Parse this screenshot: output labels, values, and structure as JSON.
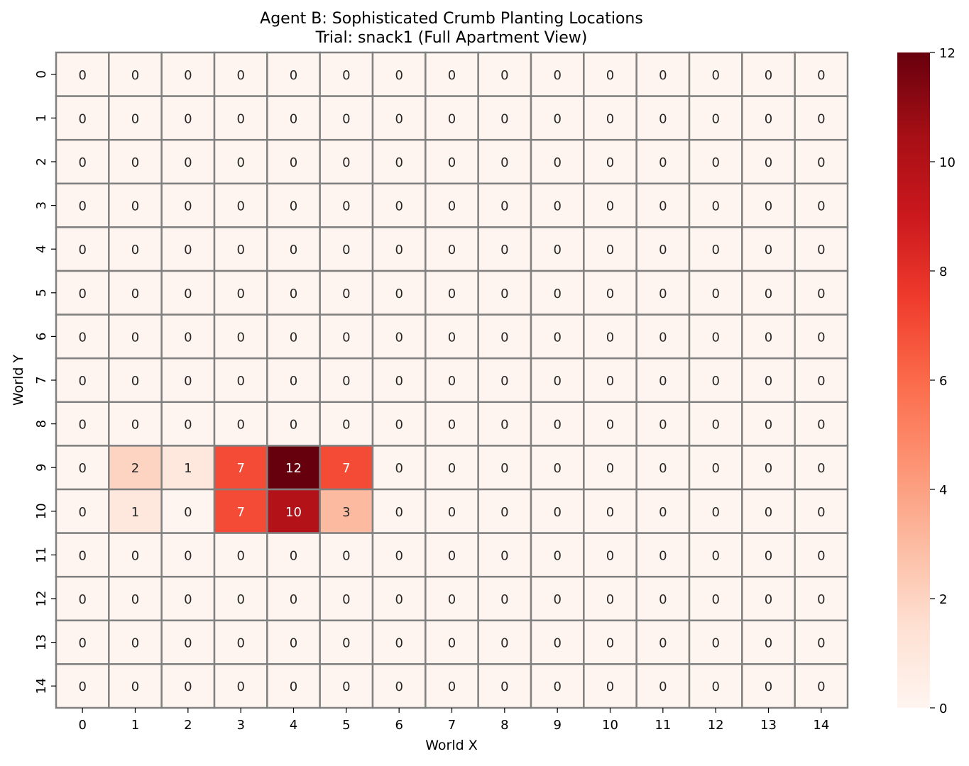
{
  "chart_data": {
    "type": "heatmap",
    "title": "Agent B: Sophisticated Crumb Planting Locations",
    "subtitle": "Trial: snack1 (Full Apartment View)",
    "xlabel": "World X",
    "ylabel": "World Y",
    "x_ticks": [
      "0",
      "1",
      "2",
      "3",
      "4",
      "5",
      "6",
      "7",
      "8",
      "9",
      "10",
      "11",
      "12",
      "13",
      "14"
    ],
    "y_ticks": [
      "0",
      "1",
      "2",
      "3",
      "4",
      "5",
      "6",
      "7",
      "8",
      "9",
      "10",
      "11",
      "12",
      "13",
      "14"
    ],
    "colormap": "Reds",
    "colorbar": {
      "vmin": 0,
      "vmax": 12,
      "ticks": [
        0,
        2,
        4,
        6,
        8,
        10,
        12
      ]
    },
    "grid_line_color": "#808080",
    "values": [
      [
        0,
        0,
        0,
        0,
        0,
        0,
        0,
        0,
        0,
        0,
        0,
        0,
        0,
        0,
        0
      ],
      [
        0,
        0,
        0,
        0,
        0,
        0,
        0,
        0,
        0,
        0,
        0,
        0,
        0,
        0,
        0
      ],
      [
        0,
        0,
        0,
        0,
        0,
        0,
        0,
        0,
        0,
        0,
        0,
        0,
        0,
        0,
        0
      ],
      [
        0,
        0,
        0,
        0,
        0,
        0,
        0,
        0,
        0,
        0,
        0,
        0,
        0,
        0,
        0
      ],
      [
        0,
        0,
        0,
        0,
        0,
        0,
        0,
        0,
        0,
        0,
        0,
        0,
        0,
        0,
        0
      ],
      [
        0,
        0,
        0,
        0,
        0,
        0,
        0,
        0,
        0,
        0,
        0,
        0,
        0,
        0,
        0
      ],
      [
        0,
        0,
        0,
        0,
        0,
        0,
        0,
        0,
        0,
        0,
        0,
        0,
        0,
        0,
        0
      ],
      [
        0,
        0,
        0,
        0,
        0,
        0,
        0,
        0,
        0,
        0,
        0,
        0,
        0,
        0,
        0
      ],
      [
        0,
        0,
        0,
        0,
        0,
        0,
        0,
        0,
        0,
        0,
        0,
        0,
        0,
        0,
        0
      ],
      [
        0,
        2,
        1,
        7,
        12,
        7,
        0,
        0,
        0,
        0,
        0,
        0,
        0,
        0,
        0
      ],
      [
        0,
        1,
        0,
        7,
        10,
        3,
        0,
        0,
        0,
        0,
        0,
        0,
        0,
        0,
        0
      ],
      [
        0,
        0,
        0,
        0,
        0,
        0,
        0,
        0,
        0,
        0,
        0,
        0,
        0,
        0,
        0
      ],
      [
        0,
        0,
        0,
        0,
        0,
        0,
        0,
        0,
        0,
        0,
        0,
        0,
        0,
        0,
        0
      ],
      [
        0,
        0,
        0,
        0,
        0,
        0,
        0,
        0,
        0,
        0,
        0,
        0,
        0,
        0,
        0
      ],
      [
        0,
        0,
        0,
        0,
        0,
        0,
        0,
        0,
        0,
        0,
        0,
        0,
        0,
        0,
        0
      ]
    ]
  }
}
